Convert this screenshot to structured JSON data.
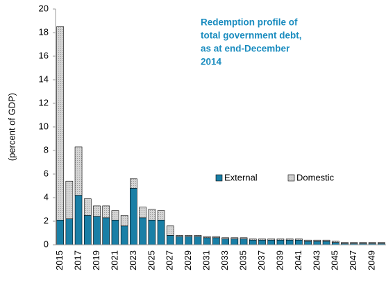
{
  "chart_data": {
    "type": "stacked_bar",
    "title": [
      "Redemption profile of",
      "total government debt,",
      "as at end-December",
      "2014"
    ],
    "ylabel": "(percent of GDP)",
    "categories": [
      "2015",
      null,
      "2017",
      null,
      "2019",
      null,
      "2021",
      null,
      "2023",
      null,
      "2025",
      null,
      "2027",
      null,
      "2029",
      null,
      "2031",
      null,
      "2033",
      null,
      "2035",
      null,
      "2037",
      null,
      "2039",
      null,
      "2041",
      null,
      "2043",
      null,
      "2045",
      null,
      "2047",
      null,
      "2049",
      null
    ],
    "series": [
      {
        "name": "External",
        "color": "#1a7fa6",
        "values": [
          2.1,
          2.2,
          4.2,
          2.5,
          2.4,
          2.3,
          2.1,
          1.6,
          4.8,
          2.3,
          2.1,
          2.1,
          0.8,
          0.7,
          0.7,
          0.7,
          0.6,
          0.6,
          0.5,
          0.5,
          0.5,
          0.4,
          0.4,
          0.4,
          0.4,
          0.4,
          0.4,
          0.3,
          0.3,
          0.3,
          0.2,
          0.1,
          0.1,
          0.1,
          0.1,
          0.1
        ]
      },
      {
        "name": "Domestic",
        "color": "#c8c8c8",
        "values": [
          16.4,
          3.2,
          4.1,
          1.4,
          0.9,
          1.0,
          0.8,
          0.9,
          0.8,
          0.9,
          0.9,
          0.8,
          0.8,
          0.1,
          0.1,
          0.1,
          0.1,
          0.1,
          0.1,
          0.1,
          0.1,
          0.1,
          0.1,
          0.1,
          0.1,
          0.1,
          0.1,
          0.1,
          0.1,
          0.1,
          0.1,
          0.1,
          0.1,
          0.1,
          0.1,
          0.1
        ]
      }
    ],
    "ylim": [
      0,
      20
    ],
    "yticks": [
      0,
      2,
      4,
      6,
      8,
      10,
      12,
      14,
      16,
      18,
      20
    ],
    "legend": "center"
  }
}
